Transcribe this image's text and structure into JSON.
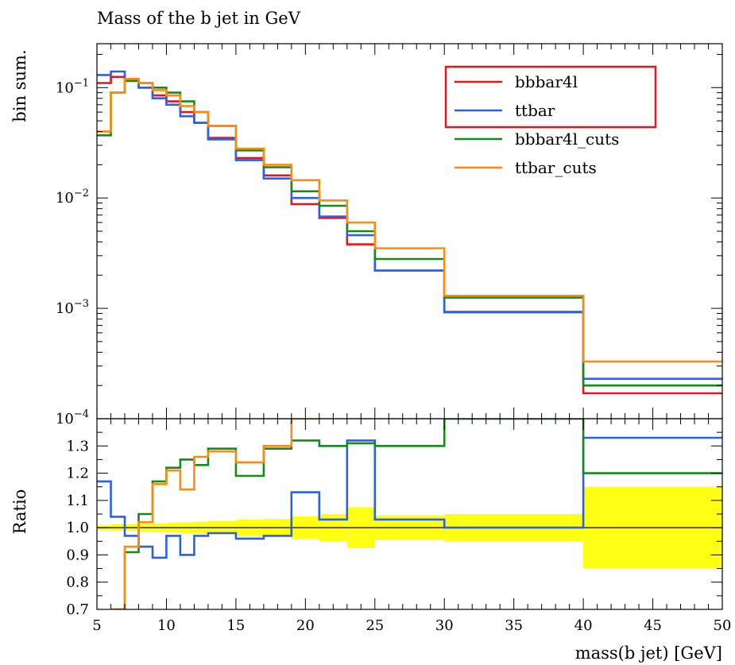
{
  "chart_data": {
    "type": "line",
    "title": "Mass of the b jet in GeV",
    "xlabel": "mass(b jet) [GeV]",
    "xlim": [
      5,
      50
    ],
    "bin_edges": [
      5,
      6,
      7,
      8,
      9,
      10,
      11,
      12,
      13,
      15,
      17,
      19,
      21,
      23,
      25,
      30,
      40,
      50
    ],
    "x_ticks": [
      5,
      10,
      15,
      20,
      25,
      30,
      35,
      40,
      45,
      50
    ],
    "x_tick_labels": [
      "5",
      "10",
      "15",
      "20",
      "25",
      "30",
      "35",
      "40",
      "45",
      "50"
    ],
    "main": {
      "ylabel": "bin sum.",
      "yscale": "log",
      "ylim": [
        0.0001,
        0.25
      ],
      "y_ticks": [
        0.1,
        0.01,
        0.001,
        0.0001
      ],
      "y_tick_bases": [
        "10",
        "10",
        "10",
        "10"
      ],
      "y_tick_exps": [
        "−1",
        "−2",
        "−3",
        "−4"
      ],
      "series": [
        {
          "name": "bbbar4l",
          "color": "#e8141c",
          "values": [
            0.11,
            0.125,
            0.12,
            0.1,
            0.085,
            0.075,
            0.06,
            0.048,
            0.035,
            0.023,
            0.016,
            0.0088,
            0.0066,
            0.0038,
            0.0022,
            0.00093,
            0.00017
          ]
        },
        {
          "name": "ttbar",
          "color": "#2a5ff0",
          "values": [
            0.13,
            0.14,
            0.115,
            0.1,
            0.08,
            0.07,
            0.055,
            0.048,
            0.034,
            0.022,
            0.015,
            0.01,
            0.0068,
            0.0046,
            0.0022,
            0.00092,
            0.00023
          ]
        },
        {
          "name": "bbbar4l_cuts",
          "color": "#148c1c",
          "values": [
            0.037,
            0.09,
            0.115,
            0.11,
            0.1,
            0.09,
            0.075,
            0.06,
            0.045,
            0.027,
            0.019,
            0.0115,
            0.0085,
            0.005,
            0.0028,
            0.00125,
            0.0002
          ]
        },
        {
          "name": "ttbar_cuts",
          "color": "#ff8a0d",
          "values": [
            0.04,
            0.09,
            0.12,
            0.11,
            0.095,
            0.085,
            0.068,
            0.06,
            0.045,
            0.028,
            0.02,
            0.0145,
            0.0095,
            0.006,
            0.0035,
            0.0013,
            0.00033
          ]
        }
      ]
    },
    "ratio": {
      "ylabel": "Ratio",
      "ylim": [
        0.7,
        1.4
      ],
      "y_ticks": [
        0.7,
        0.8,
        0.9,
        1.0,
        1.1,
        1.2,
        1.3
      ],
      "y_tick_labels": [
        "0.7",
        "0.8",
        "0.9",
        "1.0",
        "1.1",
        "1.2",
        "1.3"
      ],
      "reference": 1.0,
      "band_color": "#ffff14",
      "band_half_width": [
        0.01,
        0.012,
        0.012,
        0.014,
        0.016,
        0.018,
        0.02,
        0.022,
        0.025,
        0.03,
        0.032,
        0.042,
        0.05,
        0.075,
        0.045,
        0.05,
        0.15
      ],
      "series": [
        {
          "name": "ttbar",
          "color": "#2a5ff0",
          "values": [
            1.17,
            1.04,
            0.97,
            0.93,
            0.89,
            0.97,
            0.9,
            0.97,
            0.98,
            0.96,
            0.97,
            1.13,
            1.03,
            1.32,
            1.03,
            1.0,
            1.33
          ]
        },
        {
          "name": "bbbar4l_cuts",
          "color": "#148c1c",
          "values": [
            null,
            0.65,
            0.91,
            1.05,
            1.17,
            1.22,
            1.25,
            1.23,
            1.29,
            1.19,
            1.29,
            1.32,
            1.3,
            1.31,
            1.3,
            1.4,
            1.2
          ]
        },
        {
          "name": "ttbar_cuts",
          "color": "#ff8a0d",
          "values": [
            null,
            0.65,
            0.93,
            1.02,
            1.16,
            1.21,
            1.14,
            1.26,
            1.28,
            1.24,
            1.3,
            1.4,
            null,
            null,
            null,
            null,
            null
          ]
        }
      ]
    },
    "legend": {
      "placement": "top-right",
      "entries": [
        {
          "name": "bbbar4l",
          "label": "bbbar4l",
          "color": "#e8141c",
          "highlighted": true
        },
        {
          "name": "ttbar",
          "label": "ttbar",
          "color": "#2a5ff0",
          "highlighted": true
        },
        {
          "name": "bbbar4l_cuts",
          "label": "bbbar4l_cuts",
          "color": "#148c1c",
          "highlighted": false
        },
        {
          "name": "ttbar_cuts",
          "label": "ttbar_cuts",
          "color": "#ff8a0d",
          "highlighted": false
        }
      ],
      "highlight_color": "#e8141c"
    }
  }
}
